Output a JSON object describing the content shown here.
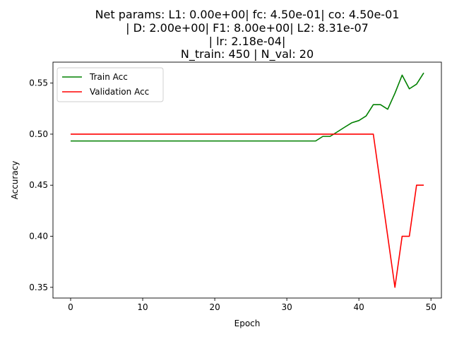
{
  "chart_data": {
    "type": "line",
    "title_lines": [
      "Net params: L1: 0.00e+00| fc: 4.50e-01| co: 4.50e-01",
      "| D: 2.00e+00| F1: 8.00e+00| L2: 8.31e-07",
      "| lr: 2.18e-04|",
      "N_train: 450 | N_val: 20"
    ],
    "xlabel": "Epoch",
    "ylabel": "Accuracy",
    "xlim": [
      -2.45,
      51.45
    ],
    "ylim": [
      0.3395,
      0.5705
    ],
    "xticks": [
      0,
      10,
      20,
      30,
      40,
      50
    ],
    "yticks": [
      0.35,
      0.4,
      0.45,
      0.5,
      0.55
    ],
    "xtick_labels": [
      "0",
      "10",
      "20",
      "30",
      "40",
      "50"
    ],
    "ytick_labels": [
      "0.35",
      "0.40",
      "0.45",
      "0.50",
      "0.55"
    ],
    "legend_position": "upper-left",
    "x": [
      0,
      1,
      2,
      3,
      4,
      5,
      6,
      7,
      8,
      9,
      10,
      11,
      12,
      13,
      14,
      15,
      16,
      17,
      18,
      19,
      20,
      21,
      22,
      23,
      24,
      25,
      26,
      27,
      28,
      29,
      30,
      31,
      32,
      33,
      34,
      35,
      36,
      37,
      38,
      39,
      40,
      41,
      42,
      43,
      44,
      45,
      46,
      47,
      48,
      49
    ],
    "series": [
      {
        "name": "Train Acc",
        "color": "#008000",
        "values": [
          0.4933,
          0.4933,
          0.4933,
          0.4933,
          0.4933,
          0.4933,
          0.4933,
          0.4933,
          0.4933,
          0.4933,
          0.4933,
          0.4933,
          0.4933,
          0.4933,
          0.4933,
          0.4933,
          0.4933,
          0.4933,
          0.4933,
          0.4933,
          0.4933,
          0.4933,
          0.4933,
          0.4933,
          0.4933,
          0.4933,
          0.4933,
          0.4933,
          0.4933,
          0.4933,
          0.4933,
          0.4933,
          0.4933,
          0.4933,
          0.4933,
          0.4978,
          0.4978,
          0.5022,
          0.5067,
          0.5111,
          0.5133,
          0.5178,
          0.5289,
          0.5289,
          0.5244,
          0.54,
          0.5578,
          0.5444,
          0.5489,
          0.56
        ]
      },
      {
        "name": "Validation Acc",
        "color": "#ff0000",
        "values": [
          0.5,
          0.5,
          0.5,
          0.5,
          0.5,
          0.5,
          0.5,
          0.5,
          0.5,
          0.5,
          0.5,
          0.5,
          0.5,
          0.5,
          0.5,
          0.5,
          0.5,
          0.5,
          0.5,
          0.5,
          0.5,
          0.5,
          0.5,
          0.5,
          0.5,
          0.5,
          0.5,
          0.5,
          0.5,
          0.5,
          0.5,
          0.5,
          0.5,
          0.5,
          0.5,
          0.5,
          0.5,
          0.5,
          0.5,
          0.5,
          0.5,
          0.5,
          0.5,
          0.45,
          0.4,
          0.35,
          0.4,
          0.4,
          0.45,
          0.45
        ]
      }
    ]
  }
}
